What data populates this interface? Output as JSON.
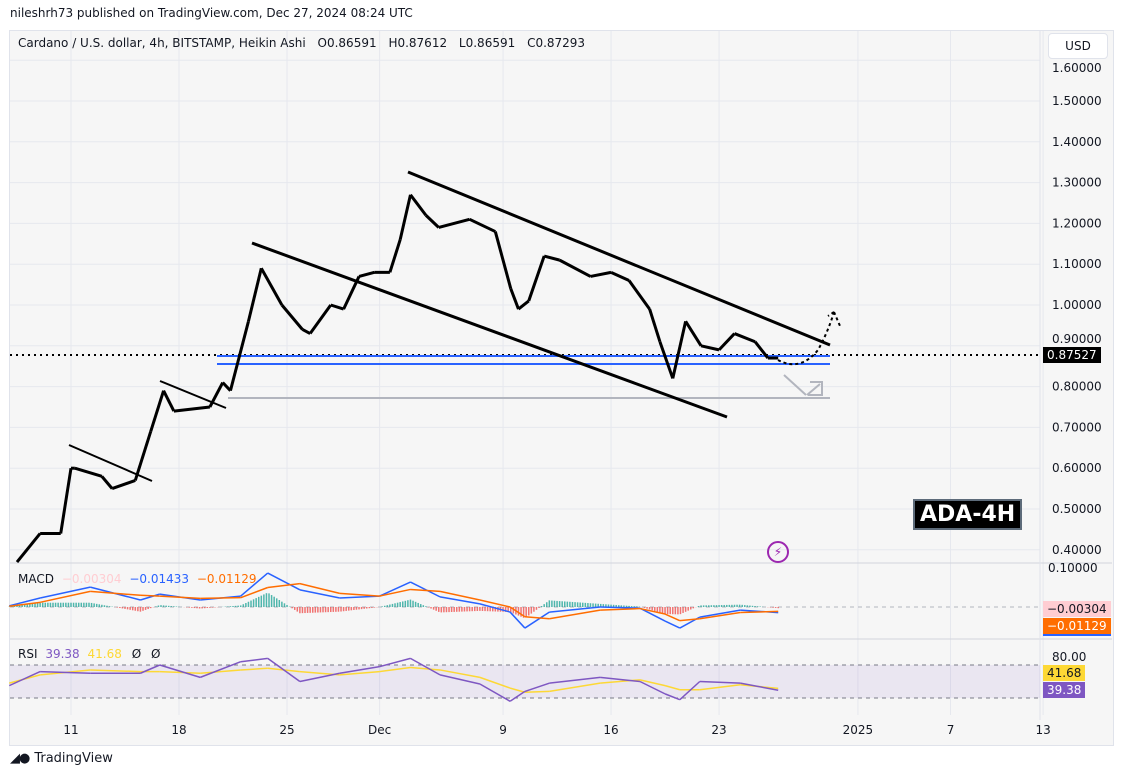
{
  "publisher_line": "nileshrh73 published on TradingView.com, Dec 27, 2024 08:24 UTC",
  "legend": {
    "symbol": "Cardano / U.S. dollar, 4h, BITSTAMP, Heikin Ashi",
    "open": "O0.86591",
    "high": "H0.87612",
    "low": "L0.86591",
    "close": "C0.87293"
  },
  "currency_button": "USD",
  "last_price_tag": "0.87527",
  "annotation_label": "ADA-4H",
  "footer_brand": "TradingView",
  "colors": {
    "price": "#000000",
    "support": "#2962ff",
    "macd": "#2962ff",
    "signal": "#ff6d00",
    "rsi": "#7e57c2",
    "rsi_ma": "#fdd835",
    "hist_up": "#26a69a",
    "hist_down": "#ef5350"
  },
  "macd_legend": {
    "label": "MACD",
    "histogram": "−0.00304",
    "macd": "−0.01433",
    "signal": "−0.01129"
  },
  "macd_tags": {
    "histogram": "−0.00304",
    "signal": "−0.01129",
    "axis_top": "0.10000"
  },
  "rsi_legend": {
    "label": "RSI",
    "rsi": "39.38",
    "ma": "41.68",
    "extra1": "Ø",
    "extra2": "Ø"
  },
  "rsi_tags": {
    "axis_top": "80.00",
    "ma": "41.68",
    "rsi": "39.38"
  },
  "chart_data": {
    "type": "line",
    "price_axis": {
      "ticks": [
        "1.60000",
        "1.50000",
        "1.40000",
        "1.30000",
        "1.20000",
        "1.10000",
        "1.00000",
        "0.90000",
        "0.80000",
        "0.70000",
        "0.60000",
        "0.50000",
        "0.40000"
      ],
      "values": [
        1.6,
        1.5,
        1.4,
        1.3,
        1.2,
        1.1,
        1.0,
        0.9,
        0.8,
        0.7,
        0.6,
        0.5,
        0.4
      ]
    },
    "time_axis": [
      {
        "label": "11",
        "date": "2024-11-11T00:00Z"
      },
      {
        "label": "18",
        "date": "2024-11-18T00:00Z"
      },
      {
        "label": "25",
        "date": "2024-11-25T00:00Z"
      },
      {
        "label": "Dec",
        "date": "2024-12-01T00:00Z"
      },
      {
        "label": "9",
        "date": "2024-12-09T00:00Z"
      },
      {
        "label": "16",
        "date": "2024-12-16T00:00Z"
      },
      {
        "label": "23",
        "date": "2024-12-23T00:00Z"
      },
      {
        "label": "2025",
        "date": "2025-01-01T00:00Z"
      },
      {
        "label": "7",
        "date": "2025-01-07T00:00Z"
      },
      {
        "label": "13",
        "date": "2025-01-13T00:00Z"
      }
    ],
    "grid": true,
    "price_series": [
      [
        "2024-11-07T12:00Z",
        0.37
      ],
      [
        "2024-11-09T00:00Z",
        0.44
      ],
      [
        "2024-11-10T08:00Z",
        0.44
      ],
      [
        "2024-11-11T00:00Z",
        0.6
      ],
      [
        "2024-11-11T06:00Z",
        0.6
      ],
      [
        "2024-11-13T00:00Z",
        0.58
      ],
      [
        "2024-11-13T16:00Z",
        0.55
      ],
      [
        "2024-11-15T04:00Z",
        0.57
      ],
      [
        "2024-11-16T04:00Z",
        0.69
      ],
      [
        "2024-11-17T00:00Z",
        0.79
      ],
      [
        "2024-11-17T16:00Z",
        0.74
      ],
      [
        "2024-11-20T00:00Z",
        0.75
      ],
      [
        "2024-11-20T20:00Z",
        0.81
      ],
      [
        "2024-11-21T08:00Z",
        0.79
      ],
      [
        "2024-11-22T12:00Z",
        0.96
      ],
      [
        "2024-11-23T08:00Z",
        1.09
      ],
      [
        "2024-11-24T16:00Z",
        1.0
      ],
      [
        "2024-11-26T00:00Z",
        0.94
      ],
      [
        "2024-11-26T12:00Z",
        0.93
      ],
      [
        "2024-11-27T20:00Z",
        1.0
      ],
      [
        "2024-11-28T16:00Z",
        0.99
      ],
      [
        "2024-11-29T16:00Z",
        1.07
      ],
      [
        "2024-11-30T16:00Z",
        1.08
      ],
      [
        "2024-12-01T16:00Z",
        1.08
      ],
      [
        "2024-12-02T08:00Z",
        1.16
      ],
      [
        "2024-12-03T00:00Z",
        1.27
      ],
      [
        "2024-12-04T00:00Z",
        1.22
      ],
      [
        "2024-12-04T20:00Z",
        1.19
      ],
      [
        "2024-12-06T20:00Z",
        1.21
      ],
      [
        "2024-12-08T12:00Z",
        1.18
      ],
      [
        "2024-12-09T12:00Z",
        1.04
      ],
      [
        "2024-12-10T00:00Z",
        0.99
      ],
      [
        "2024-12-10T16:00Z",
        1.01
      ],
      [
        "2024-12-11T16:00Z",
        1.12
      ],
      [
        "2024-12-12T16:00Z",
        1.11
      ],
      [
        "2024-12-14T16:00Z",
        1.07
      ],
      [
        "2024-12-16T00:00Z",
        1.08
      ],
      [
        "2024-12-17T04:00Z",
        1.06
      ],
      [
        "2024-12-18T12:00Z",
        0.99
      ],
      [
        "2024-12-19T04:00Z",
        0.91
      ],
      [
        "2024-12-20T00:00Z",
        0.82
      ],
      [
        "2024-12-20T20:00Z",
        0.96
      ],
      [
        "2024-12-21T20:00Z",
        0.9
      ],
      [
        "2024-12-23T00:00Z",
        0.89
      ],
      [
        "2024-12-24T00:00Z",
        0.93
      ],
      [
        "2024-12-25T08:00Z",
        0.91
      ],
      [
        "2024-12-26T04:00Z",
        0.87
      ],
      [
        "2024-12-26T20:00Z",
        0.87
      ]
    ],
    "indicator_dates": [
      "2024-11-07T00:00Z",
      "2024-11-09T00:00Z",
      "2024-11-12T06:00Z",
      "2024-11-15T12:00Z",
      "2024-11-16T18:00Z",
      "2024-11-19T09:00Z",
      "2024-11-22T00:00Z",
      "2024-11-23T18:00Z",
      "2024-11-25T20:00Z",
      "2024-11-28T10:00Z",
      "2024-12-01T00:00Z",
      "2024-12-03T00:00Z",
      "2024-12-04T22:00Z",
      "2024-12-07T12:00Z",
      "2024-12-09T11:00Z",
      "2024-12-10T10:00Z",
      "2024-12-12T00:00Z",
      "2024-12-15T07:00Z",
      "2024-12-17T21:00Z",
      "2024-12-19T12:00Z",
      "2024-12-20T11:00Z",
      "2024-12-21T18:00Z",
      "2024-12-24T09:00Z",
      "2024-12-26T20:00Z"
    ],
    "macd": [
      0.003,
      0.023,
      0.051,
      0.018,
      0.033,
      0.018,
      0.028,
      0.087,
      0.044,
      0.023,
      0.028,
      0.064,
      0.026,
      0.008,
      -0.013,
      -0.054,
      -0.013,
      0.0,
      -0.003,
      -0.036,
      -0.054,
      -0.026,
      -0.008,
      -0.01433
    ],
    "macd_signal": [
      0.002,
      0.012,
      0.04,
      0.03,
      0.028,
      0.022,
      0.024,
      0.05,
      0.06,
      0.035,
      0.028,
      0.045,
      0.04,
      0.018,
      0.0,
      -0.025,
      -0.03,
      -0.008,
      -0.004,
      -0.018,
      -0.035,
      -0.03,
      -0.014,
      -0.01129
    ],
    "rsi": [
      45,
      62,
      60,
      60,
      70,
      55,
      74,
      78,
      50,
      60,
      68,
      78,
      58,
      47,
      26,
      38,
      48,
      55,
      50,
      35,
      28,
      50,
      48,
      39.38
    ],
    "rsi_ma": [
      48,
      58,
      64,
      62,
      62,
      60,
      64,
      66,
      62,
      58,
      62,
      67,
      64,
      55,
      42,
      37,
      38,
      48,
      52,
      45,
      40,
      40,
      46,
      41.68
    ],
    "rsi_levels": [
      70,
      30
    ]
  }
}
